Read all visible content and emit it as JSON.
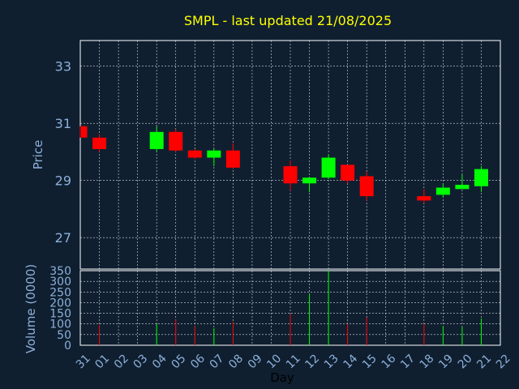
{
  "chart_data": {
    "type": "candlestick",
    "title": "SMPL - last updated 21/08/2025",
    "xlabel": "Day",
    "ylabel": "Price",
    "volume_label": "Volume (0000)",
    "categories": [
      "31",
      "01",
      "02",
      "03",
      "04",
      "05",
      "06",
      "07",
      "08",
      "09",
      "10",
      "11",
      "12",
      "13",
      "14",
      "15",
      "16",
      "17",
      "18",
      "19",
      "20",
      "21",
      "22"
    ],
    "price_ylim": [
      25.9,
      33.9
    ],
    "price_ticks": [
      27,
      29,
      31,
      33
    ],
    "volume_ylim": [
      0,
      350
    ],
    "volume_ticks": [
      0,
      50,
      100,
      150,
      200,
      250,
      300,
      350
    ],
    "grid": true,
    "up_color": "#00ff00",
    "down_color": "#ff0000",
    "candles": [
      {
        "day": "31",
        "open": 30.9,
        "close": 30.5,
        "high": 30.9,
        "low": 30.5,
        "volume": 0
      },
      {
        "day": "01",
        "open": 30.5,
        "close": 30.1,
        "high": 30.6,
        "low": 30.0,
        "volume": 95
      },
      {
        "day": "04",
        "open": 30.1,
        "close": 30.7,
        "high": 30.9,
        "low": 30.0,
        "volume": 100
      },
      {
        "day": "05",
        "open": 30.7,
        "close": 30.05,
        "high": 30.8,
        "low": 30.0,
        "volume": 120
      },
      {
        "day": "06",
        "open": 30.05,
        "close": 29.8,
        "high": 30.1,
        "low": 29.75,
        "volume": 90
      },
      {
        "day": "07",
        "open": 29.8,
        "close": 30.05,
        "high": 30.1,
        "low": 29.5,
        "volume": 80
      },
      {
        "day": "08",
        "open": 30.05,
        "close": 29.45,
        "high": 30.3,
        "low": 29.4,
        "volume": 110
      },
      {
        "day": "11",
        "open": 29.5,
        "close": 28.9,
        "high": 29.7,
        "low": 28.65,
        "volume": 145
      },
      {
        "day": "12",
        "open": 28.9,
        "close": 29.1,
        "high": 29.1,
        "low": 28.6,
        "volume": 240
      },
      {
        "day": "13",
        "open": 29.1,
        "close": 29.8,
        "high": 29.9,
        "low": 29.05,
        "volume": 350
      },
      {
        "day": "14",
        "open": 29.55,
        "close": 29.0,
        "high": 29.55,
        "low": 28.9,
        "volume": 100
      },
      {
        "day": "15",
        "open": 29.15,
        "close": 28.45,
        "high": 29.3,
        "low": 28.3,
        "volume": 130
      },
      {
        "day": "18",
        "open": 28.45,
        "close": 28.3,
        "high": 28.7,
        "low": 28.2,
        "volume": 100
      },
      {
        "day": "19",
        "open": 28.5,
        "close": 28.75,
        "high": 28.9,
        "low": 28.4,
        "volume": 90
      },
      {
        "day": "20",
        "open": 28.7,
        "close": 28.85,
        "high": 29.2,
        "low": 28.7,
        "volume": 85
      },
      {
        "day": "21",
        "open": 28.8,
        "close": 29.4,
        "high": 29.5,
        "low": 28.6,
        "volume": 125
      }
    ]
  }
}
